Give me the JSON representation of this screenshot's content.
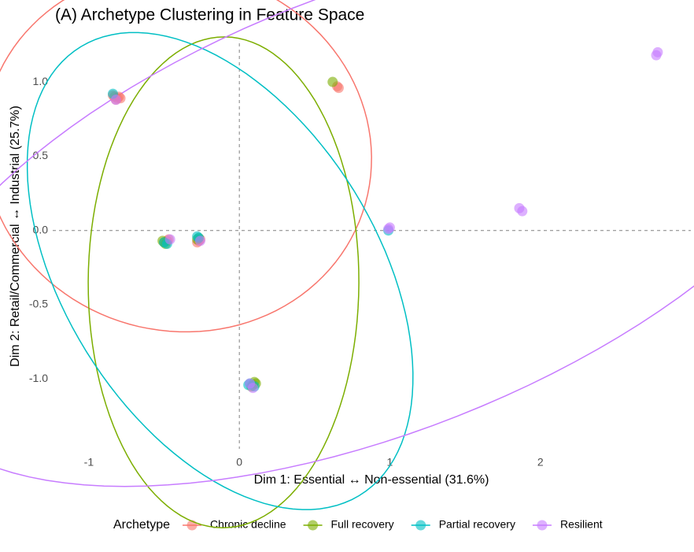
{
  "chart_data": {
    "type": "scatter",
    "title": "(A) Archetype Clustering in Feature Space",
    "x_label": "Dim 1: Essential ↔ Non-essential (31.6%)",
    "y_label": "Dim 2: Retail/Commercial ↔ Industrial (25.7%)",
    "legend_title": "Archetype",
    "legend_position": "bottom",
    "grid": false,
    "ellipses": true,
    "vline": 0,
    "hline": 0,
    "xlim": [
      -1.24,
      3.0
    ],
    "ylim": [
      -1.47,
      1.26
    ],
    "xticks": [
      -1,
      0,
      1,
      2
    ],
    "yticks": [
      {
        "value": 1,
        "label": "1.0"
      },
      {
        "value": 0.5,
        "label": "0.5"
      },
      {
        "value": 0,
        "label": "0.0"
      },
      {
        "value": -0.5,
        "label": "-0.5"
      },
      {
        "value": -1,
        "label": "-1.0"
      }
    ],
    "series": [
      {
        "name": "Chronic decline",
        "color": "#F8766D",
        "x": [
          -0.83,
          -0.81,
          -0.8,
          -0.82,
          -0.79,
          -0.84,
          -0.27,
          -0.26,
          -0.28,
          -0.48,
          -0.47,
          0.65,
          0.66
        ],
        "values": [
          0.9,
          0.89,
          0.9,
          0.88,
          0.89,
          0.91,
          -0.07,
          -0.06,
          -0.08,
          -0.07,
          -0.06,
          0.97,
          0.96
        ]
      },
      {
        "name": "Full recovery",
        "color": "#7CAE00",
        "x": [
          0.62,
          -0.5,
          -0.49,
          -0.51,
          -0.27,
          -0.28,
          0.1,
          0.11,
          0.09,
          0.08
        ],
        "values": [
          1.0,
          -0.08,
          -0.09,
          -0.07,
          -0.05,
          -0.06,
          -1.02,
          -1.03,
          -1.04,
          -1.05
        ]
      },
      {
        "name": "Partial recovery",
        "color": "#00BFC4",
        "x": [
          -0.84,
          -0.5,
          -0.48,
          -0.28,
          -0.27,
          0.06,
          0.07,
          0.1,
          0.99
        ],
        "values": [
          0.92,
          -0.08,
          -0.09,
          -0.04,
          -0.05,
          -1.04,
          -1.03,
          -1.05,
          0.0
        ]
      },
      {
        "name": "Resilient",
        "color": "#C77CFF",
        "x": [
          2.78,
          2.77,
          1.86,
          1.88,
          0.99,
          1.0,
          -0.46,
          -0.26,
          0.09,
          0.07,
          -0.82
        ],
        "values": [
          1.2,
          1.18,
          0.15,
          0.13,
          0.01,
          0.02,
          -0.06,
          -0.07,
          -1.06,
          -1.03,
          0.88
        ]
      }
    ]
  }
}
